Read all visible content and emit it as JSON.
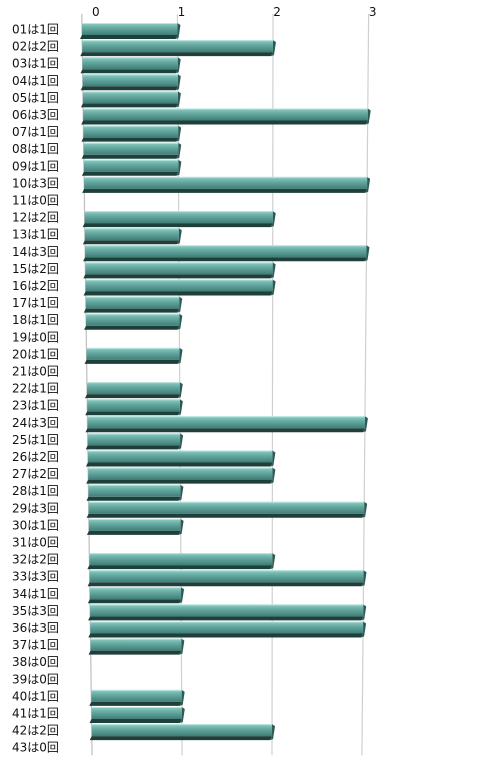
{
  "chart_data": {
    "type": "bar",
    "orientation": "horizontal",
    "style": "3d-perspective",
    "bar_color": "#5f9f98",
    "categories": [
      "01は1回",
      "02は2回",
      "03は1回",
      "04は1回",
      "05は1回",
      "06は3回",
      "07は1回",
      "08は1回",
      "09は1回",
      "10は3回",
      "11は0回",
      "12は2回",
      "13は1回",
      "14は3回",
      "15は2回",
      "16は2回",
      "17は1回",
      "18は1回",
      "19は0回",
      "20は1回",
      "21は0回",
      "22は1回",
      "23は1回",
      "24は3回",
      "25は1回",
      "26は2回",
      "27は2回",
      "28は1回",
      "29は3回",
      "30は1回",
      "31は0回",
      "32は2回",
      "33は3回",
      "34は1回",
      "35は3回",
      "36は3回",
      "37は1回",
      "38は0回",
      "39は0回",
      "40は1回",
      "41は1回",
      "42は2回",
      "43は0回"
    ],
    "values": [
      1,
      2,
      1,
      1,
      1,
      3,
      1,
      1,
      1,
      3,
      0,
      2,
      1,
      3,
      2,
      2,
      1,
      1,
      0,
      1,
      0,
      1,
      1,
      3,
      1,
      2,
      2,
      1,
      3,
      1,
      0,
      2,
      3,
      1,
      3,
      3,
      1,
      0,
      0,
      1,
      1,
      2,
      0
    ],
    "xticks": [
      "0",
      "1",
      "2",
      "3"
    ],
    "xlim": [
      0,
      3
    ],
    "grid": true,
    "legend": "none"
  }
}
